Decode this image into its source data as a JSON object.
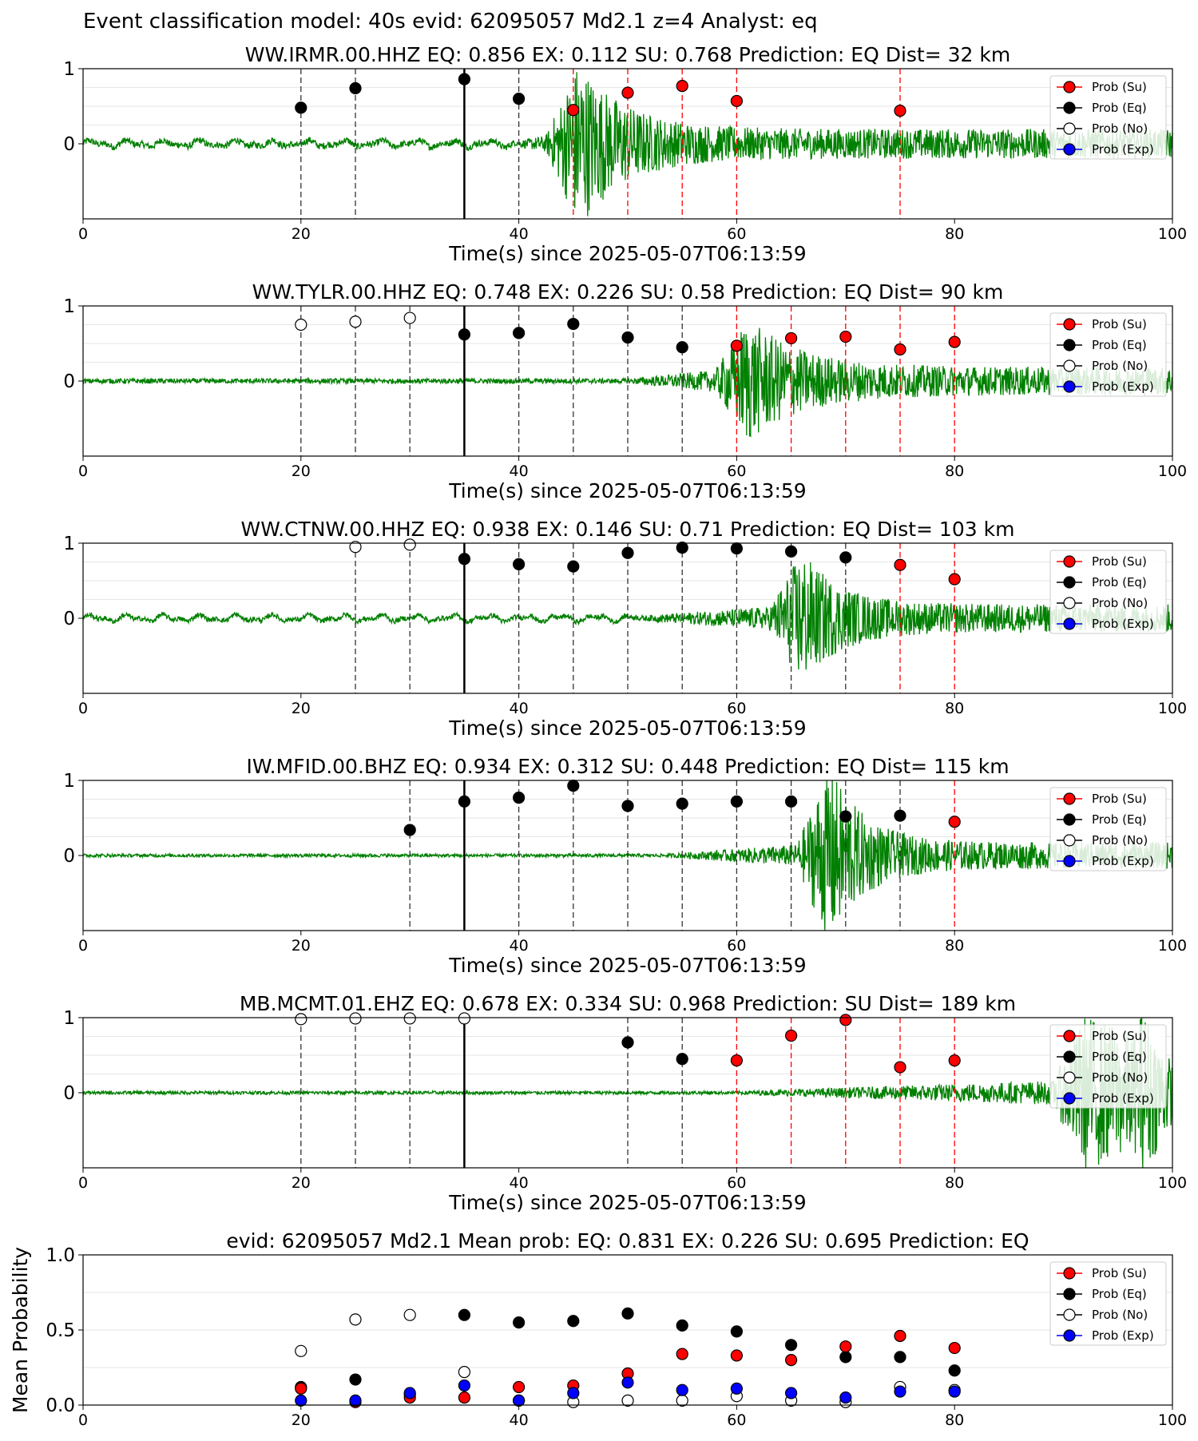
{
  "figure": {
    "main_title": "Event classification model: 40s evid: 62095057 Md2.1 z=4 Analyst: eq"
  },
  "legend": [
    {
      "label": "Prob (Su)",
      "color": "#ff0000",
      "fill": "#ff0000"
    },
    {
      "label": "Prob (Eq)",
      "color": "#000000",
      "fill": "#000000"
    },
    {
      "label": "Prob (No)",
      "color": "#000000",
      "fill": "#ffffff"
    },
    {
      "label": "Prob (Exp)",
      "color": "#0000ff",
      "fill": "#0000ff"
    }
  ],
  "colors": {
    "waveform": "#008000",
    "su": "#ff0000",
    "eq": "#000000",
    "no": "#ffffff",
    "exp": "#0000ff"
  },
  "chart_data": [
    {
      "type": "line",
      "title": "WW.IRMR.00.HHZ   EQ: 0.856  EX: 0.112  SU: 0.768   Prediction: EQ    Dist= 32 km",
      "xlabel": "Time(s) since 2025-05-07T06:13:59",
      "ylabel": "",
      "xlim": [
        0,
        100
      ],
      "ylim": [
        -1,
        1
      ],
      "xticks": [
        "0",
        "20",
        "40",
        "60",
        "80",
        "100"
      ],
      "yticks": [
        "1",
        "0"
      ],
      "arrival": 35,
      "waveform": {
        "onset": 40,
        "peak_time": 45.5,
        "peak_amp": 0.85,
        "noise": 0.04,
        "coda_decay": 12,
        "low_freq": true,
        "end_taper": false
      },
      "points": [
        {
          "t": 20,
          "y": 0.48,
          "class": "eq"
        },
        {
          "t": 25,
          "y": 0.74,
          "class": "eq"
        },
        {
          "t": 35,
          "y": 0.86,
          "class": "eq"
        },
        {
          "t": 40,
          "y": 0.6,
          "class": "eq"
        },
        {
          "t": 45,
          "y": 0.45,
          "class": "su"
        },
        {
          "t": 50,
          "y": 0.68,
          "class": "su"
        },
        {
          "t": 55,
          "y": 0.77,
          "class": "su"
        },
        {
          "t": 60,
          "y": 0.57,
          "class": "su"
        },
        {
          "t": 75,
          "y": 0.44,
          "class": "su"
        }
      ]
    },
    {
      "type": "line",
      "title": "WW.TYLR.00.HHZ   EQ: 0.748  EX: 0.226  SU: 0.58   Prediction: EQ    Dist= 90 km",
      "xlabel": "Time(s) since 2025-05-07T06:13:59",
      "ylabel": "",
      "xlim": [
        0,
        100
      ],
      "ylim": [
        -1,
        1
      ],
      "xticks": [
        "0",
        "20",
        "40",
        "60",
        "80",
        "100"
      ],
      "yticks": [
        "1",
        "0"
      ],
      "arrival": 35,
      "waveform": {
        "onset": 50,
        "peak_time": 61,
        "peak_amp": 0.6,
        "noise": 0.03,
        "coda_decay": 14,
        "low_freq": false,
        "end_taper": false
      },
      "points": [
        {
          "t": 20,
          "y": 0.75,
          "class": "no"
        },
        {
          "t": 25,
          "y": 0.79,
          "class": "no"
        },
        {
          "t": 30,
          "y": 0.84,
          "class": "no"
        },
        {
          "t": 35,
          "y": 0.62,
          "class": "eq"
        },
        {
          "t": 40,
          "y": 0.64,
          "class": "eq"
        },
        {
          "t": 45,
          "y": 0.76,
          "class": "eq"
        },
        {
          "t": 50,
          "y": 0.58,
          "class": "eq"
        },
        {
          "t": 55,
          "y": 0.45,
          "class": "eq"
        },
        {
          "t": 60,
          "y": 0.47,
          "class": "su"
        },
        {
          "t": 65,
          "y": 0.57,
          "class": "su"
        },
        {
          "t": 70,
          "y": 0.59,
          "class": "su"
        },
        {
          "t": 75,
          "y": 0.42,
          "class": "su"
        },
        {
          "t": 80,
          "y": 0.52,
          "class": "su"
        }
      ]
    },
    {
      "type": "line",
      "title": "WW.CTNW.00.HHZ   EQ: 0.938  EX: 0.146  SU: 0.71   Prediction: EQ    Dist= 103 km",
      "xlabel": "Time(s) since 2025-05-07T06:13:59",
      "ylabel": "",
      "xlim": [
        0,
        100
      ],
      "ylim": [
        -1,
        1
      ],
      "xticks": [
        "0",
        "20",
        "40",
        "60",
        "80",
        "100"
      ],
      "yticks": [
        "1",
        "0"
      ],
      "arrival": 35,
      "waveform": {
        "onset": 51,
        "peak_time": 66,
        "peak_amp": 0.65,
        "noise": 0.03,
        "coda_decay": 10,
        "low_freq": true,
        "end_taper": false
      },
      "points": [
        {
          "t": 25,
          "y": 0.95,
          "class": "no"
        },
        {
          "t": 30,
          "y": 0.98,
          "class": "no"
        },
        {
          "t": 35,
          "y": 0.79,
          "class": "eq"
        },
        {
          "t": 40,
          "y": 0.72,
          "class": "eq"
        },
        {
          "t": 45,
          "y": 0.69,
          "class": "eq"
        },
        {
          "t": 50,
          "y": 0.87,
          "class": "eq"
        },
        {
          "t": 55,
          "y": 0.94,
          "class": "eq"
        },
        {
          "t": 60,
          "y": 0.93,
          "class": "eq"
        },
        {
          "t": 65,
          "y": 0.89,
          "class": "eq"
        },
        {
          "t": 70,
          "y": 0.81,
          "class": "eq"
        },
        {
          "t": 75,
          "y": 0.71,
          "class": "su"
        },
        {
          "t": 80,
          "y": 0.52,
          "class": "su"
        }
      ]
    },
    {
      "type": "line",
      "title": "IW.MFID.00.BHZ   EQ: 0.934  EX: 0.312  SU: 0.448   Prediction: EQ    Dist= 115 km",
      "xlabel": "Time(s) since 2025-05-07T06:13:59",
      "ylabel": "",
      "xlim": [
        0,
        100
      ],
      "ylim": [
        -1,
        1
      ],
      "xticks": [
        "0",
        "20",
        "40",
        "60",
        "80",
        "100"
      ],
      "yticks": [
        "1",
        "0"
      ],
      "arrival": 35,
      "waveform": {
        "onset": 53.5,
        "peak_time": 68.5,
        "peak_amp": 0.95,
        "noise": 0.02,
        "coda_decay": 9,
        "low_freq": false,
        "end_taper": false
      },
      "points": [
        {
          "t": 30,
          "y": 0.34,
          "class": "eq"
        },
        {
          "t": 35,
          "y": 0.72,
          "class": "eq"
        },
        {
          "t": 40,
          "y": 0.77,
          "class": "eq"
        },
        {
          "t": 45,
          "y": 0.93,
          "class": "eq"
        },
        {
          "t": 50,
          "y": 0.66,
          "class": "eq"
        },
        {
          "t": 55,
          "y": 0.69,
          "class": "eq"
        },
        {
          "t": 60,
          "y": 0.72,
          "class": "eq"
        },
        {
          "t": 65,
          "y": 0.72,
          "class": "eq"
        },
        {
          "t": 70,
          "y": 0.52,
          "class": "eq"
        },
        {
          "t": 75,
          "y": 0.53,
          "class": "eq"
        },
        {
          "t": 80,
          "y": 0.45,
          "class": "su"
        }
      ]
    },
    {
      "type": "line",
      "title": "MB.MCMT.01.EHZ   EQ: 0.678  EX: 0.334  SU: 0.968   Prediction: SU    Dist= 189 km",
      "xlabel": "Time(s) since 2025-05-07T06:13:59",
      "ylabel": "",
      "xlim": [
        0,
        100
      ],
      "ylim": [
        -1,
        1
      ],
      "xticks": [
        "0",
        "20",
        "40",
        "60",
        "80",
        "100"
      ],
      "yticks": [
        "1",
        "0"
      ],
      "arrival": 35,
      "waveform": {
        "onset": 60,
        "peak_time": 92,
        "peak_amp": 0.8,
        "noise": 0.02,
        "coda_decay": 40,
        "low_freq": false,
        "end_taper": true
      },
      "points": [
        {
          "t": 20,
          "y": 0.98,
          "class": "no"
        },
        {
          "t": 25,
          "y": 0.99,
          "class": "no"
        },
        {
          "t": 30,
          "y": 0.99,
          "class": "no"
        },
        {
          "t": 35,
          "y": 0.99,
          "class": "no"
        },
        {
          "t": 50,
          "y": 0.67,
          "class": "eq"
        },
        {
          "t": 55,
          "y": 0.45,
          "class": "eq"
        },
        {
          "t": 60,
          "y": 0.43,
          "class": "su"
        },
        {
          "t": 65,
          "y": 0.76,
          "class": "su"
        },
        {
          "t": 70,
          "y": 0.97,
          "class": "su"
        },
        {
          "t": 75,
          "y": 0.34,
          "class": "su"
        },
        {
          "t": 80,
          "y": 0.43,
          "class": "su"
        }
      ]
    },
    {
      "type": "scatter",
      "title": "evid: 62095057  Md2.1   Mean prob:   EQ: 0.831  EX: 0.226  SU: 0.695   Prediction: EQ",
      "xlabel": "",
      "ylabel": "Mean Probability",
      "xlim": [
        0,
        100
      ],
      "ylim": [
        0,
        1
      ],
      "xticks": [
        "0",
        "20",
        "40",
        "60",
        "80",
        "100"
      ],
      "yticks": [
        "1.0",
        "0.5",
        "0.0"
      ],
      "x": [
        20,
        25,
        30,
        35,
        40,
        45,
        50,
        55,
        60,
        65,
        70,
        75,
        80
      ],
      "series": [
        {
          "name": "Prob (Su)",
          "class": "su",
          "values": [
            0.11,
            0.02,
            0.05,
            0.05,
            0.12,
            0.13,
            0.21,
            0.34,
            0.33,
            0.3,
            0.39,
            0.46,
            0.38
          ]
        },
        {
          "name": "Prob (Eq)",
          "class": "eq",
          "values": [
            0.12,
            0.17,
            0.07,
            0.6,
            0.55,
            0.56,
            0.61,
            0.53,
            0.49,
            0.4,
            0.32,
            0.32,
            0.23
          ]
        },
        {
          "name": "Prob (No)",
          "class": "no",
          "values": [
            0.36,
            0.57,
            0.6,
            0.22,
            0.03,
            0.02,
            0.03,
            0.03,
            0.06,
            0.03,
            0.02,
            0.12,
            0.1
          ]
        },
        {
          "name": "Prob (Exp)",
          "class": "exp",
          "values": [
            0.03,
            0.03,
            0.08,
            0.13,
            0.03,
            0.08,
            0.15,
            0.1,
            0.11,
            0.08,
            0.05,
            0.09,
            0.09
          ]
        }
      ]
    }
  ]
}
